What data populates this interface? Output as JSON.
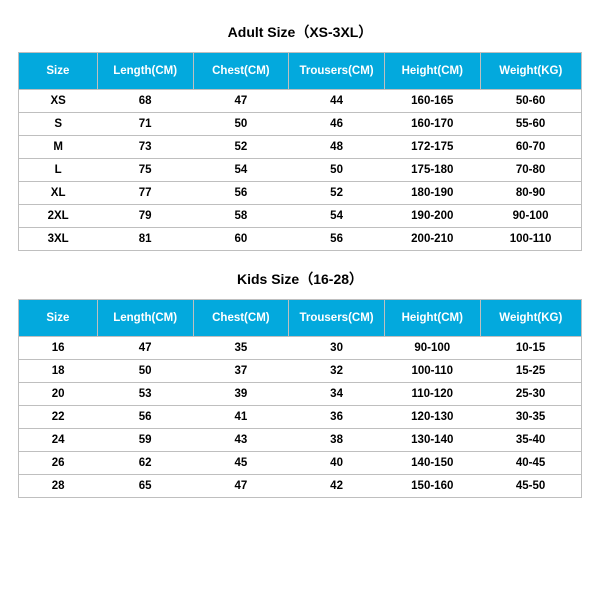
{
  "adult": {
    "title": "Adult Size（XS-3XL）",
    "columns": [
      "Size",
      "Length(CM)",
      "Chest(CM)",
      "Trousers(CM)",
      "Height(CM)",
      "Weight(KG)"
    ],
    "rows": [
      [
        "XS",
        "68",
        "47",
        "44",
        "160-165",
        "50-60"
      ],
      [
        "S",
        "71",
        "50",
        "46",
        "160-170",
        "55-60"
      ],
      [
        "M",
        "73",
        "52",
        "48",
        "172-175",
        "60-70"
      ],
      [
        "L",
        "75",
        "54",
        "50",
        "175-180",
        "70-80"
      ],
      [
        "XL",
        "77",
        "56",
        "52",
        "180-190",
        "80-90"
      ],
      [
        "2XL",
        "79",
        "58",
        "54",
        "190-200",
        "90-100"
      ],
      [
        "3XL",
        "81",
        "60",
        "56",
        "200-210",
        "100-110"
      ]
    ]
  },
  "kids": {
    "title": "Kids Size（16-28）",
    "columns": [
      "Size",
      "Length(CM)",
      "Chest(CM)",
      "Trousers(CM)",
      "Height(CM)",
      "Weight(KG)"
    ],
    "rows": [
      [
        "16",
        "47",
        "35",
        "30",
        "90-100",
        "10-15"
      ],
      [
        "18",
        "50",
        "37",
        "32",
        "100-110",
        "15-25"
      ],
      [
        "20",
        "53",
        "39",
        "34",
        "110-120",
        "25-30"
      ],
      [
        "22",
        "56",
        "41",
        "36",
        "120-130",
        "30-35"
      ],
      [
        "24",
        "59",
        "43",
        "38",
        "130-140",
        "35-40"
      ],
      [
        "26",
        "62",
        "45",
        "40",
        "140-150",
        "40-45"
      ],
      [
        "28",
        "65",
        "47",
        "42",
        "150-160",
        "45-50"
      ]
    ]
  },
  "style": {
    "header_bg": "#03a9dd",
    "header_fg": "#ffffff",
    "border_color": "#bfbfbf",
    "title_fontsize": 14,
    "header_fontsize": 11.5,
    "cell_fontsize": 11.5,
    "col_widths_pct": [
      14,
      17,
      17,
      17,
      17,
      18
    ]
  }
}
